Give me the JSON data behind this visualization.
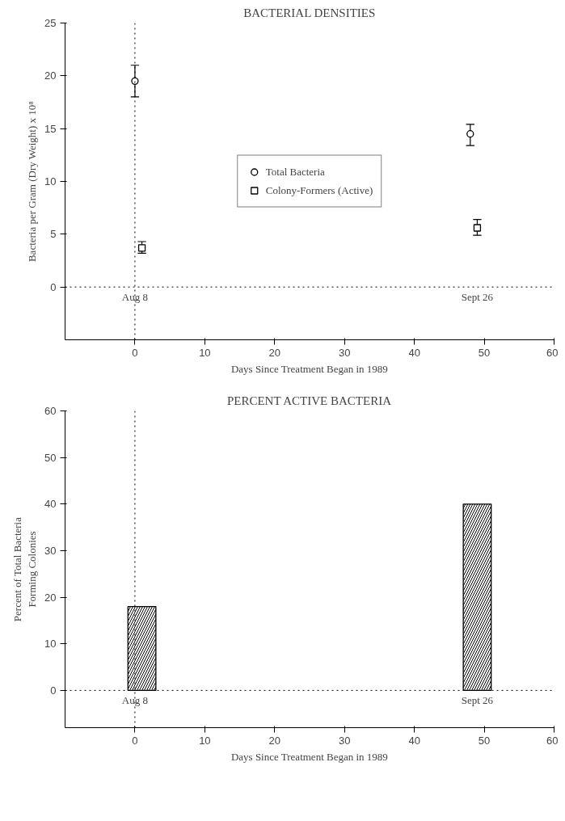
{
  "chart_data": [
    {
      "type": "scatter",
      "title": "BACTERIAL DENSITIES",
      "xlabel": "Days Since Treatment Began in 1989",
      "ylabel": "Bacteria per Gram (Dry Weight) x 10⁸",
      "xlim": [
        -10,
        60
      ],
      "xticks": [
        0,
        10,
        20,
        30,
        40,
        50,
        60
      ],
      "ylim": [
        -5,
        25
      ],
      "yticks": [
        0,
        5,
        10,
        15,
        20,
        25
      ],
      "grid": false,
      "legend": "center",
      "series": [
        {
          "name": "Total Bacteria",
          "color": "#000000",
          "marker": "circle",
          "x": [
            0,
            48
          ],
          "values": [
            19.5,
            14.5
          ],
          "errors": [
            [
              18,
              21
            ],
            [
              13.4,
              15.4
            ]
          ]
        },
        {
          "name": "Colony-Formers (Active)",
          "color": "#000000",
          "marker": "square",
          "x": [
            1,
            49
          ],
          "values": [
            3.7,
            5.6
          ],
          "errors": [
            [
              3.2,
              4.3
            ],
            [
              4.9,
              6.4
            ]
          ]
        }
      ],
      "ref_lines": [
        {
          "axis": "x",
          "value": 0,
          "label": "Aug 8",
          "line_style": "dotted"
        },
        {
          "axis": "y",
          "value": 0,
          "line_style": "dotted"
        }
      ],
      "annotations": [
        {
          "text": "Sept 26",
          "x": 49,
          "y": 0
        }
      ]
    },
    {
      "type": "bar",
      "title": "PERCENT ACTIVE BACTERIA",
      "xlabel": "Days Since Treatment Began in 1989",
      "ylabel": "Percent of Total Bacteria\nForming Colonies",
      "xlim": [
        -10,
        60
      ],
      "xticks": [
        0,
        10,
        20,
        30,
        40,
        50,
        60
      ],
      "ylim": [
        -8,
        60
      ],
      "yticks": [
        0,
        10,
        20,
        30,
        40,
        50,
        60
      ],
      "grid": false,
      "x": [
        1,
        49
      ],
      "values": [
        18,
        40
      ],
      "color": "#000000",
      "ref_lines": [
        {
          "axis": "x",
          "value": 0,
          "label": "Aug 8",
          "line_style": "dotted"
        },
        {
          "axis": "y",
          "value": 0,
          "line_style": "dotted"
        }
      ],
      "annotations": [
        {
          "text": "Sept 26",
          "x": 49,
          "y": 0
        }
      ]
    }
  ]
}
